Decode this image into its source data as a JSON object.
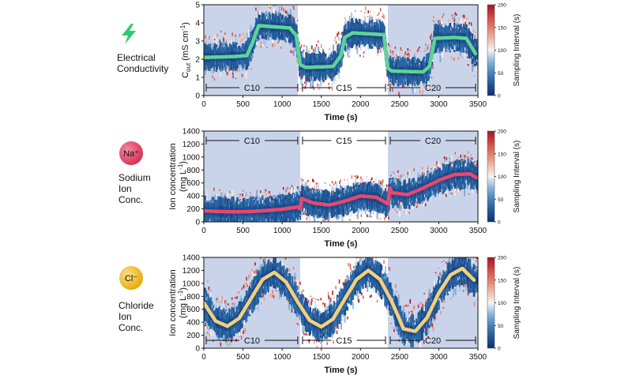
{
  "colors": {
    "conductivity_fit": "#5fd397",
    "sodium_fit": "#e7486f",
    "chloride_fit": "#f3cf7e",
    "bolt": "#2ecc71",
    "sodium_badge": "#e53b5c",
    "chloride_badge": "#f2b70f",
    "shade": "#c9d4ea",
    "low_interval": "#1d4f91",
    "high_interval": "#c9302c"
  },
  "rows": [
    {
      "label_lines": [
        "Electrical",
        "Conductivity"
      ],
      "icon": "lightning-bolt-icon",
      "badge": ""
    },
    {
      "label_lines": [
        "Sodium",
        "Ion",
        "Conc."
      ],
      "icon": "sodium-ion-icon",
      "badge": "Na⁺"
    },
    {
      "label_lines": [
        "Chloride",
        "Ion",
        "Conc."
      ],
      "icon": "chloride-ion-icon",
      "badge": "Cl⁻"
    }
  ],
  "chart_data": [
    {
      "type": "scatter",
      "xlabel": "Time (s)",
      "ylabel": "C_out (mS cm⁻¹)",
      "ylabel_main": "C",
      "ylabel_sub": "out",
      "ylabel_rest": " (mS cm",
      "ylabel_sup": "-1",
      "ylabel_end": ")",
      "xlim": [
        0,
        3500
      ],
      "ylim": [
        0,
        5
      ],
      "xticks": [
        0,
        500,
        1000,
        1500,
        2000,
        2500,
        3000,
        3500
      ],
      "yticks": [
        0,
        1,
        2,
        3,
        4,
        5
      ],
      "colorbar": {
        "label": "Sampling Interval (s)",
        "range": [
          0,
          200
        ],
        "ticks": [
          0,
          50,
          100,
          150,
          200
        ]
      },
      "shaded_intervals": [
        [
          0,
          1200
        ],
        [
          2350,
          3500
        ]
      ],
      "segments": [
        {
          "label": "C10",
          "start": 0,
          "end": 1230,
          "position": "bottom"
        },
        {
          "label": "C15",
          "start": 1230,
          "end": 2350,
          "position": "bottom"
        },
        {
          "label": "C20",
          "start": 2350,
          "end": 3500,
          "position": "bottom"
        }
      ],
      "fit": {
        "x": [
          0,
          200,
          400,
          550,
          620,
          700,
          1100,
          1180,
          1230,
          1300,
          1650,
          1750,
          1800,
          1900,
          2300,
          2350,
          2400,
          2800,
          2880,
          2950,
          3200,
          3350,
          3470
        ],
        "y": [
          2.1,
          2.12,
          2.15,
          2.2,
          2.9,
          3.85,
          3.72,
          3.3,
          1.7,
          1.55,
          1.6,
          2.2,
          3.2,
          3.45,
          3.35,
          1.5,
          1.35,
          1.3,
          1.6,
          3.15,
          3.2,
          3.15,
          2.3
        ]
      }
    },
    {
      "type": "scatter",
      "xlabel": "Time (s)",
      "ylabel": "Ion concentration (mg L⁻¹)",
      "ylabel_main": "Ion concentration",
      "ylabel_line2": "(mg L",
      "ylabel_sup": "-1",
      "ylabel_end": ")",
      "xlim": [
        0,
        3500
      ],
      "ylim": [
        0,
        1400
      ],
      "xticks": [
        0,
        500,
        1000,
        1500,
        2000,
        2500,
        3000,
        3500
      ],
      "yticks": [
        0,
        200,
        400,
        600,
        800,
        1000,
        1200,
        1400
      ],
      "colorbar": {
        "label": "Sampling Interval (s)",
        "range": [
          0,
          200
        ],
        "ticks": [
          0,
          50,
          100,
          150,
          200
        ]
      },
      "shaded_intervals": [
        [
          0,
          1230
        ],
        [
          2350,
          3500
        ]
      ],
      "segments": [
        {
          "label": "C10",
          "start": 0,
          "end": 1230,
          "position": "top"
        },
        {
          "label": "C15",
          "start": 1230,
          "end": 2350,
          "position": "top"
        },
        {
          "label": "C20",
          "start": 2350,
          "end": 3500,
          "position": "top"
        }
      ],
      "fit": {
        "x": [
          0,
          200,
          400,
          600,
          800,
          1000,
          1200,
          1230,
          1250,
          1400,
          1600,
          1800,
          2000,
          2200,
          2350,
          2380,
          2400,
          2600,
          2800,
          3000,
          3200,
          3400,
          3480
        ],
        "y": [
          170,
          160,
          155,
          160,
          175,
          195,
          230,
          200,
          360,
          290,
          260,
          320,
          400,
          380,
          280,
          520,
          450,
          420,
          520,
          640,
          730,
          740,
          680
        ]
      }
    },
    {
      "type": "scatter",
      "xlabel": "Time (s)",
      "ylabel": "Ion concentration (mg L⁻¹)",
      "ylabel_main": "Ion concentration",
      "ylabel_line2": "(mg L",
      "ylabel_sup": "-1",
      "ylabel_end": ")",
      "xlim": [
        0,
        3500
      ],
      "ylim": [
        0,
        1400
      ],
      "xticks": [
        0,
        500,
        1000,
        1500,
        2000,
        2500,
        3000,
        3500
      ],
      "yticks": [
        0,
        200,
        400,
        600,
        800,
        1000,
        1200,
        1400
      ],
      "colorbar": {
        "label": "Sampling Interval (s)",
        "range": [
          0,
          200
        ],
        "ticks": [
          0,
          50,
          100,
          150,
          200
        ]
      },
      "shaded_intervals": [
        [
          0,
          1230
        ],
        [
          2350,
          3500
        ]
      ],
      "segments": [
        {
          "label": "C10",
          "start": 0,
          "end": 1230,
          "position": "bottom"
        },
        {
          "label": "C15",
          "start": 1230,
          "end": 2350,
          "position": "bottom"
        },
        {
          "label": "C20",
          "start": 2350,
          "end": 3500,
          "position": "bottom"
        }
      ],
      "fit": {
        "x": [
          0,
          150,
          300,
          450,
          600,
          750,
          900,
          1050,
          1200,
          1350,
          1500,
          1650,
          1800,
          1950,
          2100,
          2250,
          2400,
          2550,
          2700,
          2850,
          3000,
          3150,
          3300,
          3450
        ],
        "y": [
          700,
          420,
          340,
          460,
          760,
          1060,
          1170,
          1020,
          710,
          430,
          330,
          450,
          760,
          1060,
          1200,
          1060,
          720,
          300,
          260,
          470,
          850,
          1130,
          1230,
          1050
        ]
      }
    }
  ]
}
